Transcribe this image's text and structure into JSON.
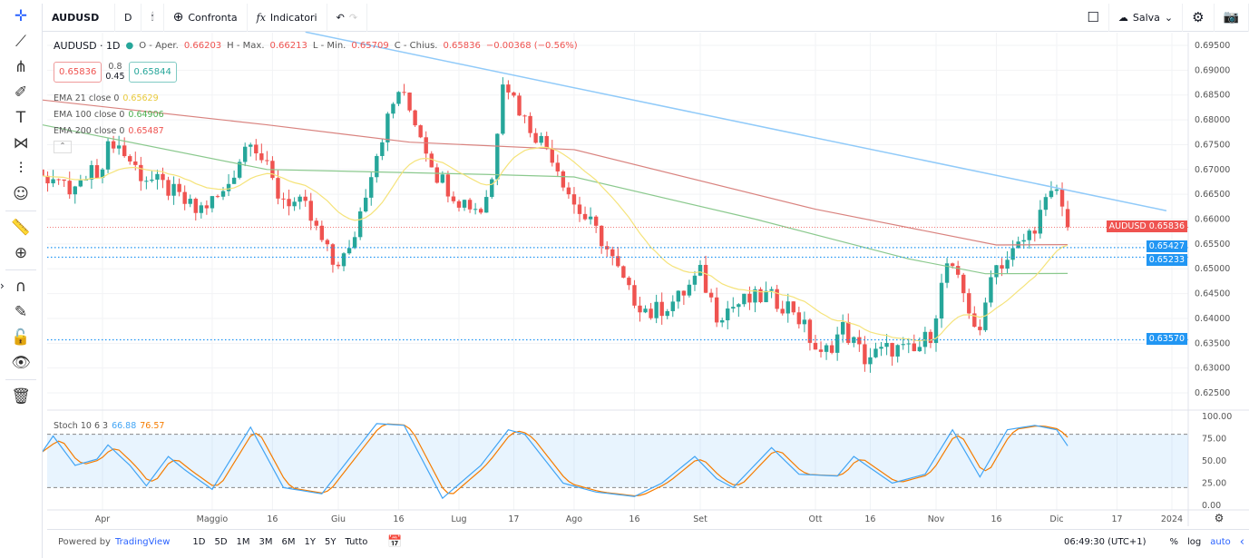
{
  "toolbar": {
    "symbol": "AUDUSD",
    "interval": "D",
    "compare": "Confronta",
    "indicators": "Indicatori",
    "save": "Salva"
  },
  "legend": {
    "title": "AUDUSD · 1D",
    "o_label": "O - Aper.",
    "o": "0.66203",
    "h_label": "H - Max.",
    "h": "0.66213",
    "l_label": "L - Min.",
    "l": "0.65709",
    "c_label": "C - Chius.",
    "c": "0.65836",
    "change": "−0.00368 (−0.56%)",
    "sell": "0.65836",
    "spread_top": "0.8",
    "spread": "0.45",
    "buy": "0.65844"
  },
  "emas": [
    {
      "label": "EMA 21 close 0",
      "value": "0.65629",
      "color": "#f5d742"
    },
    {
      "label": "EMA 100 close 0",
      "value": "0.64906",
      "color": "#66bb6a"
    },
    {
      "label": "EMA 200 close 0",
      "value": "0.65487",
      "color": "#e57373"
    }
  ],
  "stoch": {
    "label": "Stoch 10 6 3",
    "k": "66.88",
    "d": "76.57",
    "k_color": "#42a5f5",
    "d_color": "#f57c00"
  },
  "price_labels": {
    "current": "AUDUSD  0.65836",
    "l1": "0.65427",
    "l2": "0.65233",
    "l3": "0.63570"
  },
  "bottom": {
    "powered": "Powered by",
    "brand": "TradingView",
    "ranges": [
      "1D",
      "5D",
      "1M",
      "3M",
      "6M",
      "1Y",
      "5Y",
      "Tutto"
    ],
    "time": "06:49:30 (UTC+1)",
    "pct": "%",
    "log": "log",
    "auto": "auto"
  },
  "chart_data": {
    "type": "candlestick",
    "price_axis": {
      "min": 0.625,
      "max": 0.695,
      "ticks": [
        "0.69500",
        "0.69000",
        "0.68500",
        "0.68000",
        "0.67500",
        "0.67000",
        "0.66500",
        "0.66000",
        "0.65500",
        "0.65000",
        "0.64500",
        "0.64000",
        "0.63500",
        "0.63000",
        "0.62500"
      ]
    },
    "stoch_axis": {
      "ticks": [
        "100.00",
        "75.00",
        "50.00",
        "25.00",
        "0.00"
      ],
      "bands": [
        80,
        20
      ]
    },
    "time_ticks": [
      {
        "label": "Apr",
        "date": "2023-04-03"
      },
      {
        "label": "Maggio",
        "date": "2023-05-01"
      },
      {
        "label": "16",
        "date": "2023-05-16"
      },
      {
        "label": "Giu",
        "date": "2023-06-01"
      },
      {
        "label": "16",
        "date": "2023-06-16"
      },
      {
        "label": "Lug",
        "date": "2023-07-03"
      },
      {
        "label": "17",
        "date": "2023-07-17"
      },
      {
        "label": "Ago",
        "date": "2023-08-01"
      },
      {
        "label": "16",
        "date": "2023-08-16"
      },
      {
        "label": "Set",
        "date": "2023-09-01"
      },
      {
        "label": "Ott",
        "date": "2023-10-02"
      },
      {
        "label": "16",
        "date": "2023-10-16"
      },
      {
        "label": "Nov",
        "date": "2023-11-01"
      },
      {
        "label": "16",
        "date": "2023-11-16"
      },
      {
        "label": "Dic",
        "date": "2023-12-01"
      },
      {
        "label": "17",
        "date": "2023-12-18"
      },
      {
        "label": "2024",
        "date": "2024-01-01"
      }
    ],
    "closes": [
      [
        "2023-03-17",
        0.67
      ],
      [
        "2023-03-24",
        0.6655
      ],
      [
        "2023-03-31",
        0.67
      ],
      [
        "2023-04-05",
        0.676
      ],
      [
        "2023-04-12",
        0.669
      ],
      [
        "2023-04-19",
        0.666
      ],
      [
        "2023-04-26",
        0.6615
      ],
      [
        "2023-05-03",
        0.665
      ],
      [
        "2023-05-10",
        0.677
      ],
      [
        "2023-05-17",
        0.665
      ],
      [
        "2023-05-24",
        0.662
      ],
      [
        "2023-05-31",
        0.651
      ],
      [
        "2023-06-05",
        0.653
      ],
      [
        "2023-06-09",
        0.67
      ],
      [
        "2023-06-13",
        0.677
      ],
      [
        "2023-06-16",
        0.686
      ],
      [
        "2023-06-21",
        0.68
      ],
      [
        "2023-06-27",
        0.669
      ],
      [
        "2023-07-03",
        0.664
      ],
      [
        "2023-07-07",
        0.662
      ],
      [
        "2023-07-11",
        0.668
      ],
      [
        "2023-07-13",
        0.689
      ],
      [
        "2023-07-19",
        0.68
      ],
      [
        "2023-07-26",
        0.673
      ],
      [
        "2023-08-01",
        0.663
      ],
      [
        "2023-08-08",
        0.656
      ],
      [
        "2023-08-15",
        0.645
      ],
      [
        "2023-08-21",
        0.641
      ],
      [
        "2023-08-28",
        0.644
      ],
      [
        "2023-09-01",
        0.649
      ],
      [
        "2023-09-06",
        0.641
      ],
      [
        "2023-09-12",
        0.643
      ],
      [
        "2023-09-19",
        0.6445
      ],
      [
        "2023-09-26",
        0.642
      ],
      [
        "2023-10-03",
        0.632
      ],
      [
        "2023-10-09",
        0.638
      ],
      [
        "2023-10-13",
        0.632
      ],
      [
        "2023-10-20",
        0.634
      ],
      [
        "2023-10-26",
        0.633
      ],
      [
        "2023-10-31",
        0.637
      ],
      [
        "2023-11-03",
        0.651
      ],
      [
        "2023-11-08",
        0.645
      ],
      [
        "2023-11-13",
        0.636
      ],
      [
        "2023-11-15",
        0.65
      ],
      [
        "2023-11-20",
        0.652
      ],
      [
        "2023-11-24",
        0.657
      ],
      [
        "2023-11-29",
        0.663
      ],
      [
        "2023-12-01",
        0.666
      ],
      [
        "2023-12-04",
        0.662
      ],
      [
        "2023-12-05",
        0.65836
      ]
    ],
    "ema100": [
      [
        "2023-03-17",
        0.679
      ],
      [
        "2023-05-15",
        0.67
      ],
      [
        "2023-07-10",
        0.669
      ],
      [
        "2023-08-01",
        0.6685
      ],
      [
        "2023-09-15",
        0.66
      ],
      [
        "2023-10-25",
        0.652
      ],
      [
        "2023-11-14",
        0.649
      ],
      [
        "2023-12-05",
        0.64906
      ]
    ],
    "ema200": [
      [
        "2023-03-17",
        0.684
      ],
      [
        "2023-05-15",
        0.679
      ],
      [
        "2023-06-20",
        0.6755
      ],
      [
        "2023-08-01",
        0.674
      ],
      [
        "2023-10-02",
        0.662
      ],
      [
        "2023-11-16",
        0.6548
      ],
      [
        "2023-12-05",
        0.65487
      ]
    ],
    "stoch_k": [
      [
        "2023-03-17",
        60
      ],
      [
        "2023-03-21",
        78
      ],
      [
        "2023-03-27",
        45
      ],
      [
        "2023-03-31",
        52
      ],
      [
        "2023-04-04",
        68
      ],
      [
        "2023-04-10",
        45
      ],
      [
        "2023-04-13",
        22
      ],
      [
        "2023-04-19",
        55
      ],
      [
        "2023-04-24",
        40
      ],
      [
        "2023-05-01",
        18
      ],
      [
        "2023-05-10",
        88
      ],
      [
        "2023-05-18",
        20
      ],
      [
        "2023-05-29",
        13
      ],
      [
        "2023-06-12",
        92
      ],
      [
        "2023-06-19",
        90
      ],
      [
        "2023-06-28",
        8
      ],
      [
        "2023-07-07",
        45
      ],
      [
        "2023-07-14",
        85
      ],
      [
        "2023-07-19",
        80
      ],
      [
        "2023-07-28",
        25
      ],
      [
        "2023-08-07",
        15
      ],
      [
        "2023-08-16",
        10
      ],
      [
        "2023-08-23",
        25
      ],
      [
        "2023-08-31",
        55
      ],
      [
        "2023-09-06",
        30
      ],
      [
        "2023-09-11",
        20
      ],
      [
        "2023-09-20",
        65
      ],
      [
        "2023-09-27",
        35
      ],
      [
        "2023-10-06",
        33
      ],
      [
        "2023-10-11",
        55
      ],
      [
        "2023-10-20",
        25
      ],
      [
        "2023-10-30",
        35
      ],
      [
        "2023-11-06",
        85
      ],
      [
        "2023-11-13",
        32
      ],
      [
        "2023-11-20",
        85
      ],
      [
        "2023-11-27",
        90
      ],
      [
        "2023-12-01",
        85
      ],
      [
        "2023-12-05",
        66.88
      ]
    ],
    "trendline": [
      [
        "2023-05-24",
        0.6977
      ],
      [
        "2023-12-29",
        0.6617
      ]
    ],
    "hlines": [
      0.65427,
      0.65233,
      0.6357
    ],
    "colors": {
      "up": "#26a69a",
      "down": "#ef5350",
      "trend": "#90caf9",
      "hline": "#2196f3"
    }
  }
}
